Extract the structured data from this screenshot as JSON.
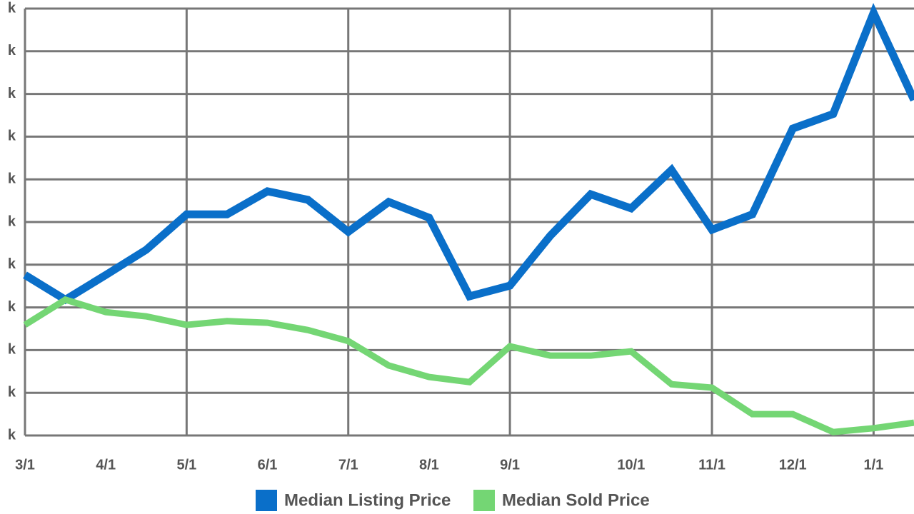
{
  "chart_data": {
    "type": "line",
    "categories": [
      "3/1",
      null,
      "4/1",
      null,
      "5/1",
      null,
      "6/1",
      null,
      "7/1",
      null,
      "8/1",
      null,
      "9/1",
      null,
      null,
      "10/1",
      null,
      "11/1",
      null,
      "12/1",
      null,
      "1/1",
      null
    ],
    "series": [
      {
        "name": "Median Listing Price",
        "color": "#0a6fc9",
        "values": [
          3.76,
          3.18,
          3.76,
          4.35,
          5.18,
          5.18,
          5.72,
          5.52,
          4.77,
          5.47,
          5.1,
          3.26,
          3.51,
          4.68,
          5.65,
          5.32,
          6.22,
          4.82,
          5.18,
          7.19,
          7.53,
          9.9,
          7.86
        ]
      },
      {
        "name": "Median Sold Price",
        "color": "#74d674",
        "values": [
          2.59,
          3.18,
          2.89,
          2.79,
          2.59,
          2.68,
          2.64,
          2.47,
          2.21,
          1.64,
          1.37,
          1.25,
          2.09,
          1.87,
          1.87,
          1.97,
          1.2,
          1.12,
          0.5,
          0.5,
          0.08,
          0.17,
          0.3
        ]
      }
    ],
    "ylim": [
      0,
      10
    ],
    "yticks": [
      {
        "value": 0,
        "label": "k"
      },
      {
        "value": 1,
        "label": "k"
      },
      {
        "value": 2,
        "label": "k"
      },
      {
        "value": 3,
        "label": "k"
      },
      {
        "value": 4,
        "label": "k"
      },
      {
        "value": 5,
        "label": "k"
      },
      {
        "value": 6,
        "label": "k"
      },
      {
        "value": 7,
        "label": "k"
      },
      {
        "value": 8,
        "label": "k"
      },
      {
        "value": 9,
        "label": "k"
      },
      {
        "value": 10,
        "label": "k"
      }
    ],
    "grid": true
  }
}
